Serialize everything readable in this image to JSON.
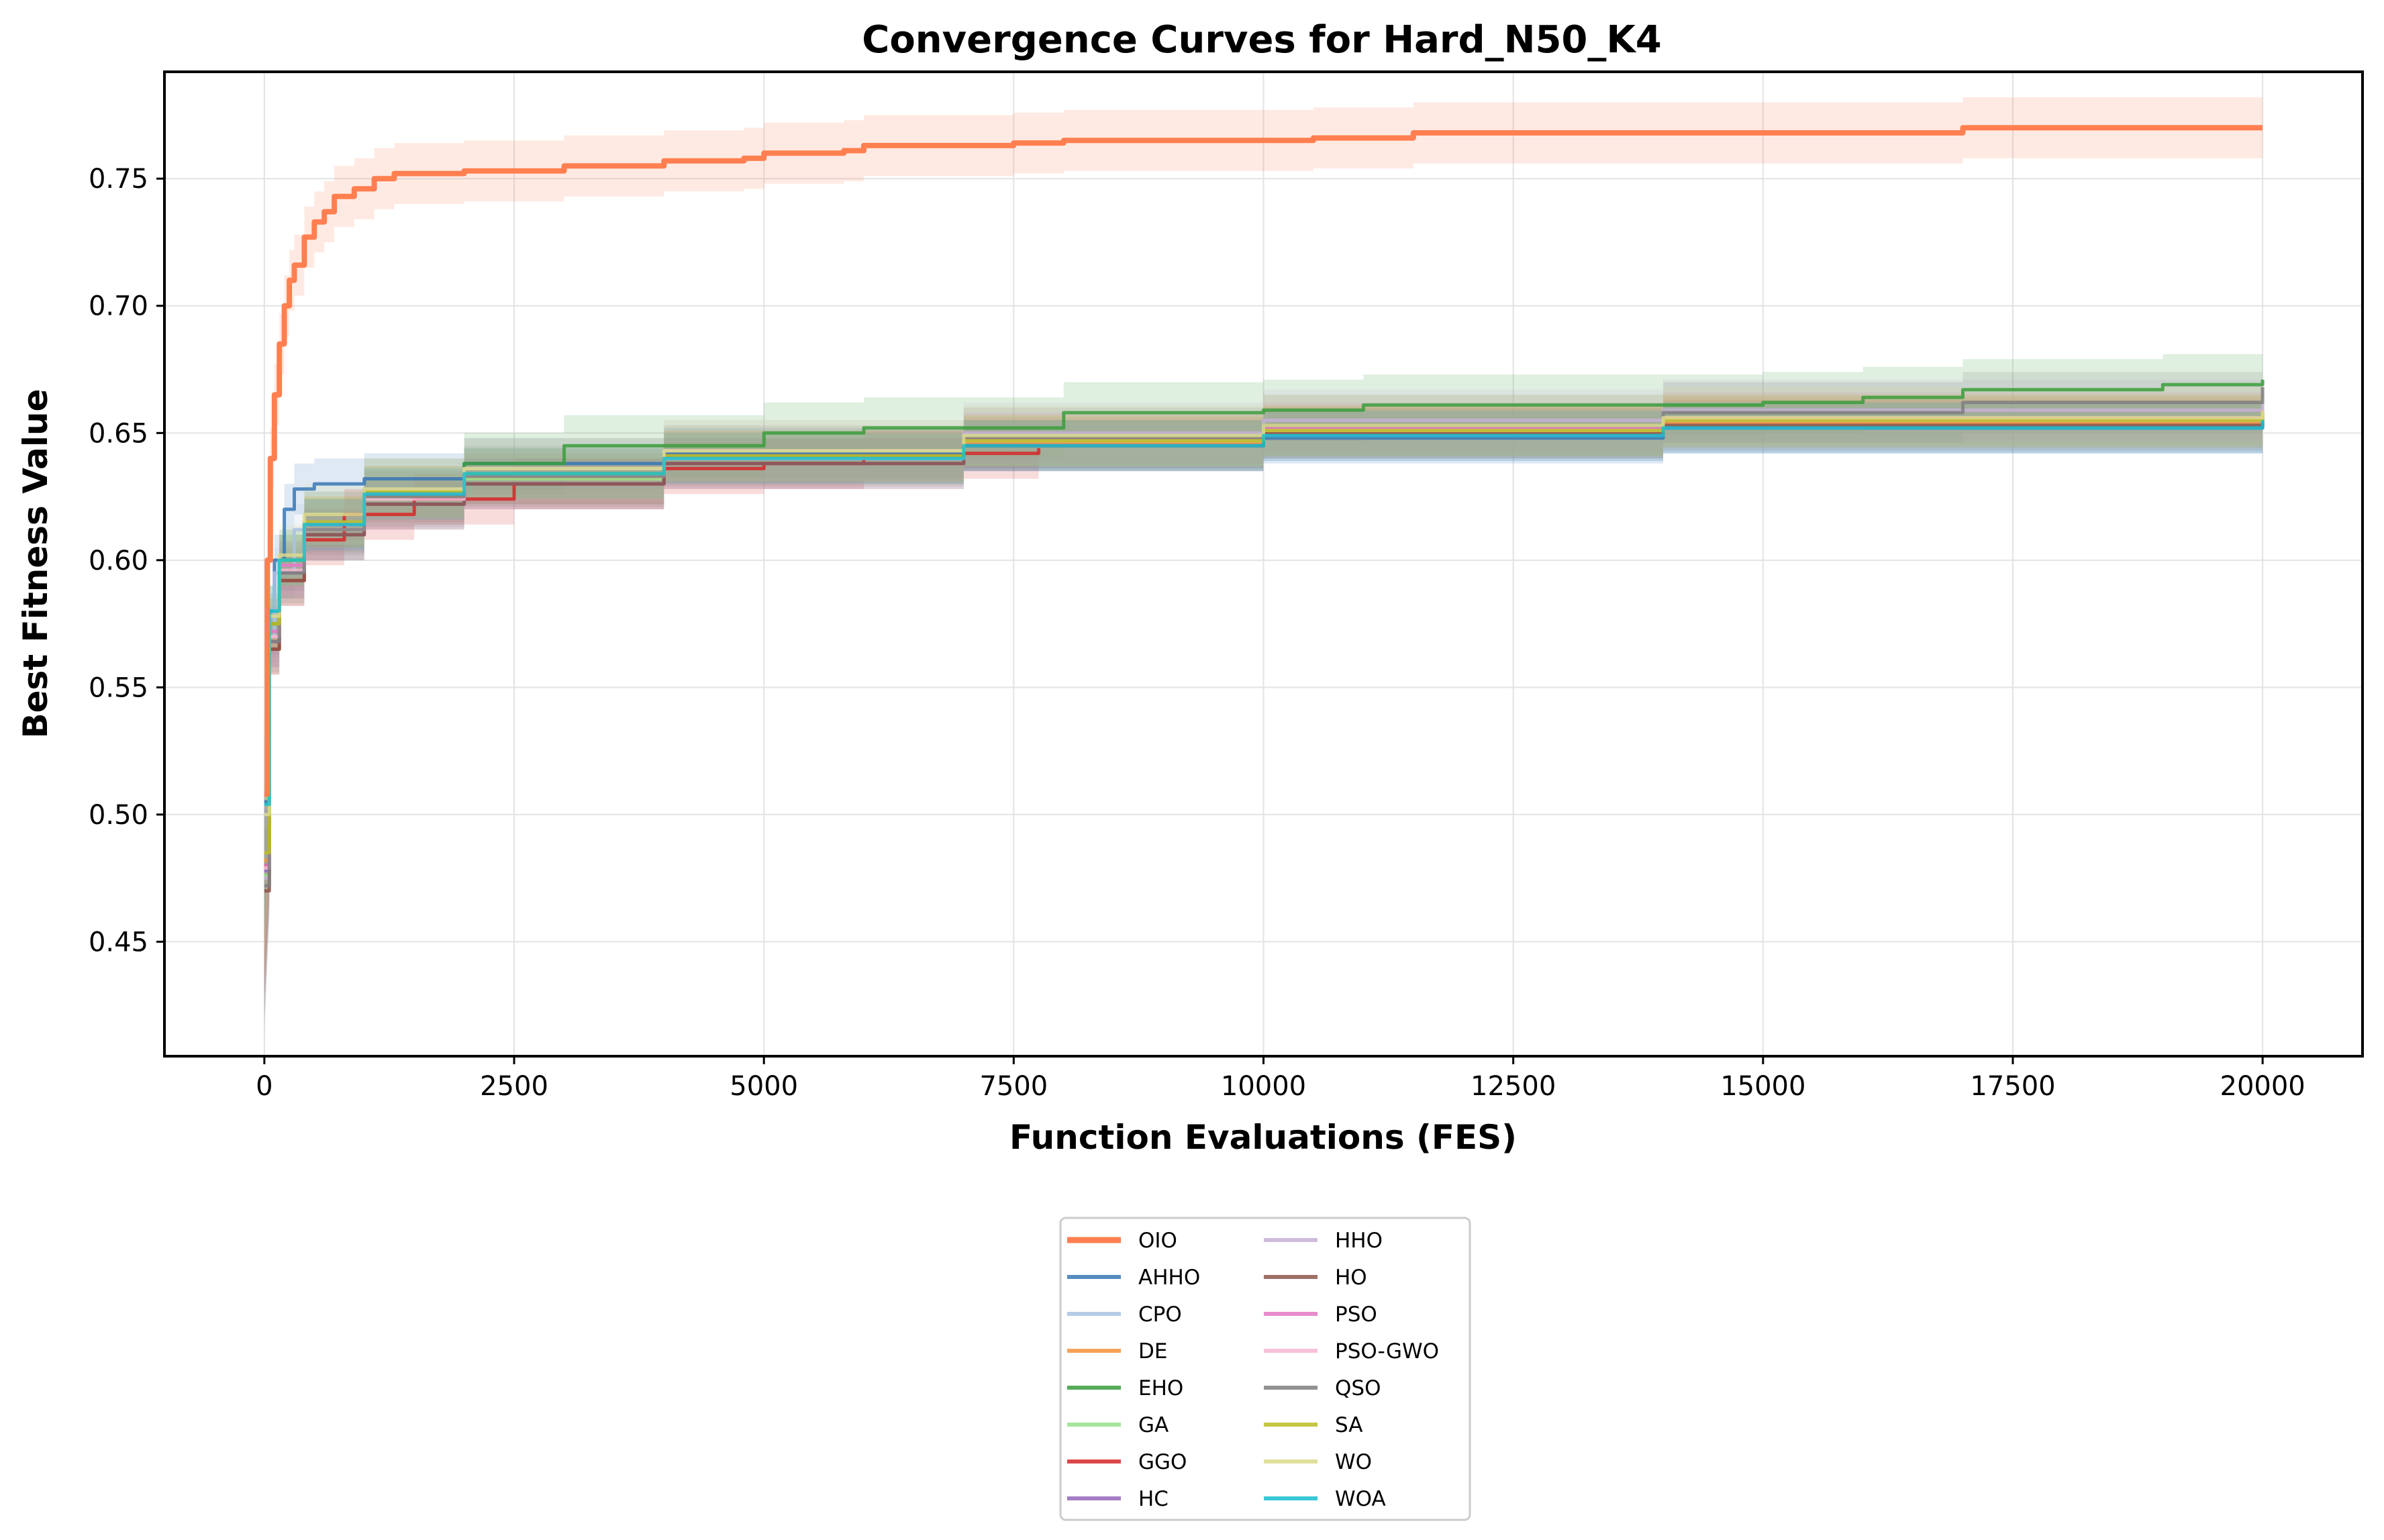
{
  "chart_data": {
    "type": "line",
    "title": "Convergence Curves for Hard_N50_K4",
    "xlabel": "Function Evaluations (FES)",
    "ylabel": "Best Fitness Value",
    "xlim": [
      -1000,
      21000
    ],
    "ylim": [
      0.405,
      0.792
    ],
    "xticks": [
      0,
      2500,
      5000,
      7500,
      10000,
      12500,
      15000,
      17500,
      20000
    ],
    "yticks": [
      0.45,
      0.5,
      0.55,
      0.6,
      0.65,
      0.7,
      0.75
    ],
    "xtick_labels": [
      "0",
      "2500",
      "5000",
      "7500",
      "10000",
      "12500",
      "15000",
      "17500",
      "20000"
    ],
    "ytick_labels": [
      "0.45",
      "0.50",
      "0.55",
      "0.60",
      "0.65",
      "0.70",
      "0.75"
    ],
    "grid": true,
    "legend_position": "below",
    "series": [
      {
        "name": "OIO",
        "color": "#ff7f50",
        "width": 8,
        "band": 0.012,
        "points": [
          [
            0,
            0.508
          ],
          [
            30,
            0.6
          ],
          [
            60,
            0.64
          ],
          [
            100,
            0.665
          ],
          [
            150,
            0.685
          ],
          [
            200,
            0.7
          ],
          [
            250,
            0.71
          ],
          [
            300,
            0.716
          ],
          [
            400,
            0.727
          ],
          [
            500,
            0.733
          ],
          [
            600,
            0.737
          ],
          [
            700,
            0.743
          ],
          [
            900,
            0.746
          ],
          [
            1100,
            0.75
          ],
          [
            1300,
            0.752
          ],
          [
            2000,
            0.753
          ],
          [
            3000,
            0.755
          ],
          [
            4000,
            0.757
          ],
          [
            4800,
            0.758
          ],
          [
            5000,
            0.76
          ],
          [
            5800,
            0.761
          ],
          [
            6000,
            0.763
          ],
          [
            7500,
            0.764
          ],
          [
            8000,
            0.765
          ],
          [
            10000,
            0.765
          ],
          [
            10500,
            0.766
          ],
          [
            11500,
            0.768
          ],
          [
            13000,
            0.768
          ],
          [
            16000,
            0.768
          ],
          [
            17000,
            0.77
          ],
          [
            20000,
            0.77
          ]
        ]
      },
      {
        "name": "AHHO",
        "color": "#3777b5",
        "width": 5,
        "band": 0.01,
        "points": [
          [
            0,
            0.505
          ],
          [
            50,
            0.58
          ],
          [
            100,
            0.6
          ],
          [
            200,
            0.62
          ],
          [
            300,
            0.628
          ],
          [
            500,
            0.63
          ],
          [
            1000,
            0.632
          ],
          [
            2000,
            0.638
          ],
          [
            4000,
            0.642
          ],
          [
            7000,
            0.645
          ],
          [
            10000,
            0.648
          ],
          [
            14000,
            0.652
          ],
          [
            20000,
            0.656
          ]
        ]
      },
      {
        "name": "CPO",
        "color": "#a9c2e3",
        "width": 5,
        "band": 0.01,
        "points": [
          [
            0,
            0.478
          ],
          [
            50,
            0.57
          ],
          [
            100,
            0.595
          ],
          [
            300,
            0.612
          ],
          [
            1000,
            0.625
          ],
          [
            2000,
            0.632
          ],
          [
            4000,
            0.64
          ],
          [
            7000,
            0.646
          ],
          [
            10000,
            0.65
          ],
          [
            14000,
            0.654
          ],
          [
            20000,
            0.657
          ]
        ]
      },
      {
        "name": "DE",
        "color": "#f5923a",
        "width": 5,
        "band": 0.01,
        "points": [
          [
            0,
            0.482
          ],
          [
            50,
            0.575
          ],
          [
            150,
            0.6
          ],
          [
            400,
            0.615
          ],
          [
            1000,
            0.625
          ],
          [
            2000,
            0.632
          ],
          [
            4000,
            0.64
          ],
          [
            7000,
            0.646
          ],
          [
            10000,
            0.65
          ],
          [
            14000,
            0.654
          ],
          [
            20000,
            0.658
          ]
        ]
      },
      {
        "name": "EHO",
        "color": "#3a9e3c",
        "width": 5,
        "band": 0.012,
        "points": [
          [
            0,
            0.48
          ],
          [
            50,
            0.575
          ],
          [
            150,
            0.6
          ],
          [
            400,
            0.615
          ],
          [
            1000,
            0.628
          ],
          [
            2000,
            0.638
          ],
          [
            3000,
            0.645
          ],
          [
            5000,
            0.65
          ],
          [
            6000,
            0.652
          ],
          [
            8000,
            0.658
          ],
          [
            10000,
            0.659
          ],
          [
            11000,
            0.661
          ],
          [
            15000,
            0.662
          ],
          [
            16000,
            0.664
          ],
          [
            17000,
            0.667
          ],
          [
            19000,
            0.669
          ],
          [
            20000,
            0.671
          ]
        ]
      },
      {
        "name": "GA",
        "color": "#98df8a",
        "width": 5,
        "band": 0.01,
        "points": [
          [
            0,
            0.476
          ],
          [
            50,
            0.57
          ],
          [
            150,
            0.595
          ],
          [
            400,
            0.612
          ],
          [
            1000,
            0.624
          ],
          [
            2000,
            0.632
          ],
          [
            4000,
            0.64
          ],
          [
            7000,
            0.647
          ],
          [
            10000,
            0.651
          ],
          [
            14000,
            0.655
          ],
          [
            20000,
            0.659
          ]
        ]
      },
      {
        "name": "GGO",
        "color": "#d62728",
        "width": 5,
        "band": 0.01,
        "points": [
          [
            0,
            0.48
          ],
          [
            50,
            0.565
          ],
          [
            150,
            0.592
          ],
          [
            400,
            0.608
          ],
          [
            800,
            0.618
          ],
          [
            1500,
            0.624
          ],
          [
            2500,
            0.63
          ],
          [
            4000,
            0.636
          ],
          [
            5000,
            0.638
          ],
          [
            6000,
            0.641
          ],
          [
            7000,
            0.642
          ],
          [
            7750,
            0.644
          ]
        ]
      },
      {
        "name": "HC",
        "color": "#9467bd",
        "width": 5,
        "band": 0.01,
        "points": [
          [
            0,
            0.478
          ],
          [
            50,
            0.568
          ],
          [
            150,
            0.595
          ],
          [
            400,
            0.61
          ],
          [
            1000,
            0.622
          ],
          [
            2000,
            0.63
          ],
          [
            4000,
            0.638
          ],
          [
            7000,
            0.645
          ],
          [
            10000,
            0.649
          ],
          [
            14000,
            0.652
          ],
          [
            20000,
            0.655
          ]
        ]
      },
      {
        "name": "HHO",
        "color": "#c5b0d5",
        "width": 5,
        "band": 0.012,
        "points": [
          [
            0,
            0.475
          ],
          [
            50,
            0.57
          ],
          [
            150,
            0.598
          ],
          [
            400,
            0.615
          ],
          [
            1000,
            0.628
          ],
          [
            2000,
            0.636
          ],
          [
            4000,
            0.643
          ],
          [
            7000,
            0.65
          ],
          [
            10000,
            0.655
          ],
          [
            14000,
            0.659
          ],
          [
            20000,
            0.662
          ]
        ]
      },
      {
        "name": "HO",
        "color": "#8c564b",
        "width": 5,
        "band": 0.01,
        "points": [
          [
            0,
            0.47
          ],
          [
            50,
            0.565
          ],
          [
            150,
            0.592
          ],
          [
            400,
            0.61
          ],
          [
            1000,
            0.622
          ],
          [
            2000,
            0.63
          ],
          [
            4000,
            0.638
          ],
          [
            7000,
            0.645
          ],
          [
            10000,
            0.65
          ],
          [
            14000,
            0.653
          ],
          [
            16000,
            0.653
          ],
          [
            20000,
            0.654
          ]
        ]
      },
      {
        "name": "PSO",
        "color": "#e377c2",
        "width": 5,
        "band": 0.01,
        "points": [
          [
            0,
            0.48
          ],
          [
            50,
            0.572
          ],
          [
            150,
            0.598
          ],
          [
            400,
            0.614
          ],
          [
            1000,
            0.626
          ],
          [
            2000,
            0.634
          ],
          [
            4000,
            0.641
          ],
          [
            7000,
            0.648
          ],
          [
            10000,
            0.652
          ],
          [
            14000,
            0.656
          ],
          [
            20000,
            0.659
          ]
        ]
      },
      {
        "name": "PSO-GWO",
        "color": "#f7b6d2",
        "width": 5,
        "band": 0.01,
        "points": [
          [
            0,
            0.479
          ],
          [
            50,
            0.57
          ],
          [
            150,
            0.596
          ],
          [
            400,
            0.612
          ],
          [
            1000,
            0.624
          ],
          [
            2000,
            0.633
          ],
          [
            4000,
            0.64
          ],
          [
            7000,
            0.647
          ],
          [
            10000,
            0.651
          ],
          [
            14000,
            0.655
          ],
          [
            20000,
            0.658
          ]
        ]
      },
      {
        "name": "QSO",
        "color": "#7f7f7f",
        "width": 5,
        "band": 0.012,
        "points": [
          [
            0,
            0.472
          ],
          [
            50,
            0.568
          ],
          [
            150,
            0.595
          ],
          [
            400,
            0.612
          ],
          [
            1000,
            0.625
          ],
          [
            2000,
            0.633
          ],
          [
            4000,
            0.641
          ],
          [
            7000,
            0.648
          ],
          [
            10000,
            0.653
          ],
          [
            14000,
            0.658
          ],
          [
            17000,
            0.662
          ],
          [
            20000,
            0.668
          ]
        ]
      },
      {
        "name": "SA",
        "color": "#bcbd22",
        "width": 5,
        "band": 0.01,
        "points": [
          [
            0,
            0.485
          ],
          [
            50,
            0.575
          ],
          [
            150,
            0.6
          ],
          [
            400,
            0.615
          ],
          [
            1000,
            0.627
          ],
          [
            2000,
            0.634
          ],
          [
            4000,
            0.641
          ],
          [
            7000,
            0.647
          ],
          [
            10000,
            0.651
          ],
          [
            14000,
            0.655
          ],
          [
            20000,
            0.658
          ]
        ]
      },
      {
        "name": "WO",
        "color": "#dbdb8d",
        "width": 5,
        "band": 0.012,
        "points": [
          [
            0,
            0.5
          ],
          [
            50,
            0.578
          ],
          [
            150,
            0.602
          ],
          [
            400,
            0.618
          ],
          [
            1000,
            0.628
          ],
          [
            2000,
            0.636
          ],
          [
            4000,
            0.643
          ],
          [
            7000,
            0.649
          ],
          [
            10000,
            0.653
          ],
          [
            14000,
            0.656
          ],
          [
            20000,
            0.659
          ]
        ]
      },
      {
        "name": "WOA",
        "color": "#17becf",
        "width": 5,
        "band": 0.01,
        "points": [
          [
            0,
            0.504
          ],
          [
            50,
            0.58
          ],
          [
            150,
            0.6
          ],
          [
            400,
            0.614
          ],
          [
            1000,
            0.626
          ],
          [
            2000,
            0.634
          ],
          [
            4000,
            0.64
          ],
          [
            7000,
            0.645
          ],
          [
            10000,
            0.649
          ],
          [
            14000,
            0.652
          ],
          [
            20000,
            0.655
          ]
        ]
      }
    ]
  }
}
